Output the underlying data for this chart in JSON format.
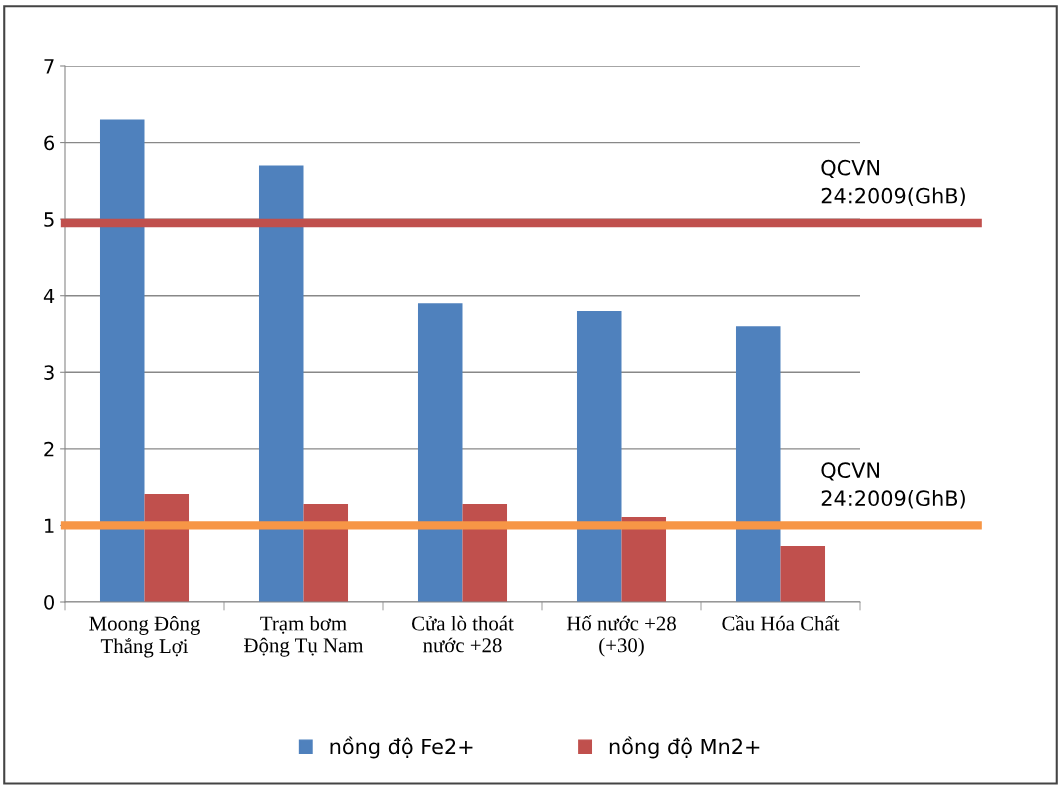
{
  "chart_data": {
    "type": "bar",
    "categories": [
      "Moong Đông\nThắng Lợi",
      "Trạm bơm\nĐộng Tụ Nam",
      "Cửa lò thoát\nnước +28",
      "Hố nước +28\n(+30)",
      "Cầu Hóa Chất"
    ],
    "series": [
      {
        "name": "nồng độ Fe2+",
        "color": "#4f81bd",
        "values": [
          6.3,
          5.7,
          3.9,
          3.8,
          3.6
        ]
      },
      {
        "name": "nồng độ Mn2+",
        "color": "#c0504d",
        "values": [
          1.41,
          1.28,
          1.28,
          1.11,
          0.73
        ]
      }
    ],
    "ylim": [
      0,
      7
    ],
    "yticks": [
      0,
      1,
      2,
      3,
      4,
      5,
      6,
      7
    ],
    "grid": "y",
    "legend": "bottom",
    "ref_lines": [
      {
        "axis": "y",
        "value": 4.95,
        "color": "#c0504d"
      },
      {
        "axis": "y",
        "value": 1.0,
        "color": "#f79646"
      }
    ],
    "annotations": [
      {
        "text": "QCVN\n24:2009(GhB)",
        "y": 4.95
      },
      {
        "text": "QCVN\n24:2009(GhB)",
        "y": 1.0
      }
    ]
  }
}
